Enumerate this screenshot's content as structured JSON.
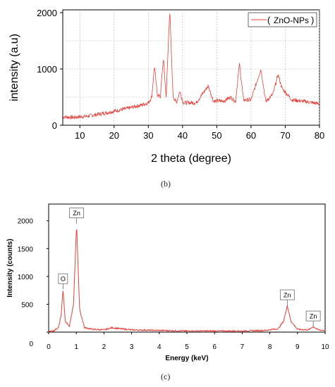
{
  "panel_labels": {
    "b": "(b)",
    "c": "(c)"
  },
  "colors": {
    "series": "#e8403a",
    "axis": "#000000",
    "grid": "#b0b0b0",
    "legend_border": "#444444"
  },
  "chart_data": [
    {
      "type": "line",
      "xlabel": "2 theta (degree)",
      "ylabel": "intensity (a.u)",
      "xlim": [
        5,
        80
      ],
      "ylim": [
        0,
        2050
      ],
      "x_ticks": [
        10,
        20,
        30,
        40,
        50,
        60,
        70,
        80
      ],
      "y_ticks": [
        0,
        1000,
        2000
      ],
      "grid": true,
      "legend_position": "top-right",
      "series": [
        {
          "name": "ZnO-NPs",
          "x": [
            5,
            8,
            12,
            16,
            20,
            24,
            28,
            30,
            31,
            31.8,
            32.6,
            33.5,
            34.4,
            35.2,
            36.25,
            37.2,
            38.2,
            39.2,
            40.2,
            44,
            47.5,
            49,
            52,
            54,
            55.5,
            56.6,
            57.8,
            60,
            62.9,
            64.3,
            66.4,
            67.9,
            69.1,
            72,
            76,
            80
          ],
          "y": [
            150,
            140,
            160,
            200,
            250,
            300,
            360,
            400,
            500,
            1050,
            550,
            500,
            1200,
            500,
            2050,
            520,
            400,
            600,
            400,
            400,
            700,
            430,
            430,
            500,
            420,
            1100,
            450,
            450,
            1000,
            420,
            550,
            900,
            650,
            450,
            420,
            380
          ]
        }
      ]
    },
    {
      "type": "line",
      "xlabel": "Energy (keV)",
      "ylabel": "Intensity (counts)",
      "xlim": [
        0,
        10
      ],
      "ylim": [
        0,
        2300
      ],
      "x_ticks": [
        0,
        1,
        2,
        3,
        4,
        5,
        6,
        7,
        8,
        9,
        10
      ],
      "y_ticks": [
        0,
        500,
        1000,
        1500,
        2000
      ],
      "grid": false,
      "annotations": [
        {
          "label": "O",
          "x": 0.52,
          "y": 770
        },
        {
          "label": "Zn",
          "x": 1.01,
          "y": 1950
        },
        {
          "label": "Zn",
          "x": 8.63,
          "y": 480
        },
        {
          "label": "Zn",
          "x": 9.57,
          "y": 100
        }
      ],
      "series": [
        {
          "x": [
            0,
            0.2,
            0.35,
            0.45,
            0.52,
            0.6,
            0.75,
            0.9,
            1.01,
            1.12,
            1.3,
            1.6,
            2.0,
            2.3,
            2.6,
            3.0,
            4.0,
            5.0,
            6.0,
            7.0,
            7.8,
            8.3,
            8.5,
            8.63,
            8.76,
            9.0,
            9.4,
            9.57,
            9.75,
            10
          ],
          "y": [
            0,
            30,
            80,
            300,
            770,
            200,
            100,
            500,
            1950,
            400,
            80,
            50,
            40,
            80,
            60,
            40,
            30,
            20,
            20,
            20,
            30,
            60,
            200,
            480,
            200,
            50,
            40,
            100,
            40,
            30
          ]
        }
      ]
    }
  ]
}
